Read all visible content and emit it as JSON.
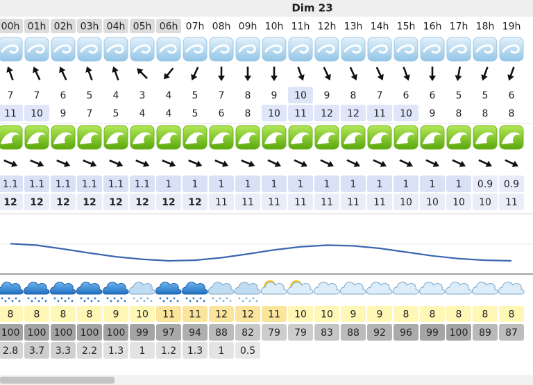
{
  "header": {
    "day": "Dim 23"
  },
  "hours": [
    "00h",
    "01h",
    "02h",
    "03h",
    "04h",
    "05h",
    "06h",
    "07h",
    "08h",
    "09h",
    "10h",
    "11h",
    "12h",
    "13h",
    "14h",
    "15h",
    "16h",
    "17h",
    "18h",
    "19h"
  ],
  "wind_dir": [
    -20,
    -25,
    -25,
    -20,
    -20,
    -45,
    220,
    205,
    180,
    180,
    180,
    160,
    155,
    155,
    155,
    160,
    180,
    190,
    200,
    200
  ],
  "wind_speed": [
    7,
    7,
    6,
    5,
    4,
    3,
    4,
    5,
    7,
    8,
    9,
    10,
    9,
    8,
    7,
    6,
    6,
    5,
    5,
    6
  ],
  "wind_gust": [
    11,
    10,
    9,
    7,
    5,
    4,
    4,
    5,
    6,
    8,
    10,
    11,
    12,
    12,
    11,
    10,
    9,
    8,
    8,
    8
  ],
  "wave_dir": [
    112,
    112,
    112,
    112,
    112,
    112,
    112,
    112,
    112,
    112,
    115,
    115,
    115,
    115,
    115,
    115,
    115,
    115,
    115,
    115
  ],
  "wave_height": [
    1.1,
    1.1,
    1.1,
    1.1,
    1.1,
    1.1,
    1,
    1,
    1,
    1,
    1,
    1,
    1,
    1,
    1,
    1,
    1,
    1,
    0.9,
    0.9
  ],
  "wave_period": [
    12,
    12,
    12,
    12,
    12,
    12,
    12,
    12,
    11,
    11,
    11,
    11,
    11,
    11,
    11,
    10,
    10,
    10,
    10,
    11
  ],
  "tide": {
    "values": [
      0.75,
      0.7,
      0.58,
      0.45,
      0.33,
      0.25,
      0.2,
      0.22,
      0.3,
      0.42,
      0.55,
      0.65,
      0.7,
      0.68,
      0.6,
      0.48,
      0.36,
      0.27,
      0.22,
      0.2
    ],
    "ylim": [
      0,
      1
    ]
  },
  "temperature": [
    8,
    8,
    8,
    8,
    9,
    10,
    11,
    11,
    12,
    12,
    11,
    10,
    10,
    9,
    9,
    8,
    8,
    8,
    8,
    8
  ],
  "cloud_cover": [
    100,
    100,
    100,
    100,
    100,
    99,
    97,
    94,
    88,
    82,
    79,
    79,
    83,
    88,
    92,
    96,
    99,
    100,
    89,
    87
  ],
  "precipitation": [
    2.8,
    3.7,
    3.3,
    2.2,
    1.3,
    1,
    1.2,
    1.3,
    1,
    0.5
  ]
}
